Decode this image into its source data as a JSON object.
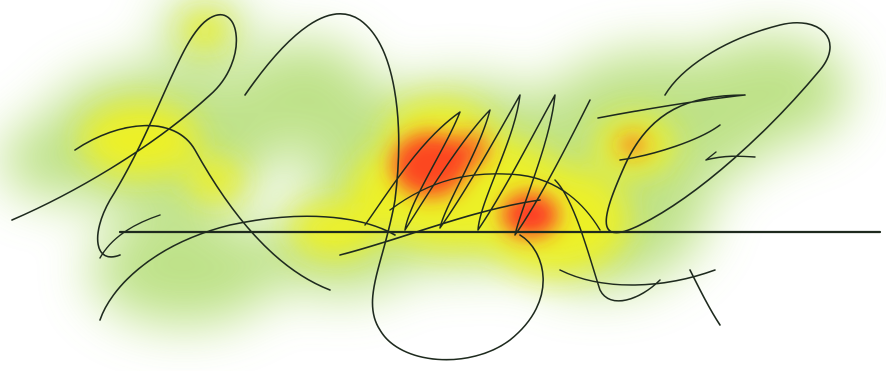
{
  "colors": {
    "background": "#ffffff",
    "ink": "#1e2a1e",
    "heat_low": "#a8d860",
    "heat_mid": "#f2f21e",
    "heat_high": "#ff2a22"
  },
  "icons": {
    "signature": "handwritten-signature",
    "heatmap": "attention-heatmap-overlay"
  }
}
